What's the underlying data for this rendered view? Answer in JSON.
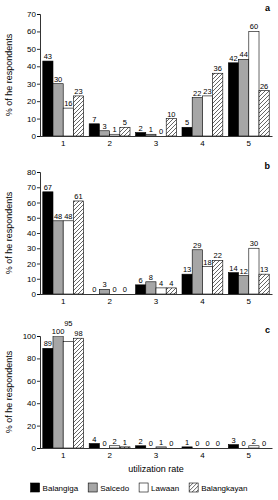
{
  "chart_data": [
    {
      "type": "bar",
      "title": "a",
      "y_label": "% of he respondents",
      "categories": [
        "1",
        "2",
        "3",
        "4",
        "5"
      ],
      "ylim": [
        0,
        70
      ],
      "yticks": [
        0,
        10,
        20,
        30,
        40,
        50,
        60,
        70
      ],
      "data_labels": true,
      "series": [
        {
          "name": "Balangiga",
          "color": "#000000",
          "values": [
            43,
            7,
            2,
            5,
            42
          ]
        },
        {
          "name": "Salcedo",
          "color": "#a6a6a6",
          "values": [
            30,
            3,
            1,
            22,
            44
          ]
        },
        {
          "name": "Lawaan",
          "color": "#ffffff",
          "values": [
            16,
            1,
            0,
            23,
            60
          ]
        },
        {
          "name": "Balangkayan",
          "color": "#555555",
          "values": [
            23,
            5,
            10,
            36,
            26
          ]
        }
      ]
    },
    {
      "type": "bar",
      "title": "b",
      "y_label": "% of he respondents",
      "categories": [
        "1",
        "2",
        "3",
        "4",
        "5"
      ],
      "ylim": [
        0,
        80
      ],
      "yticks": [
        0,
        10,
        20,
        30,
        40,
        50,
        60,
        70,
        80
      ],
      "data_labels": true,
      "series": [
        {
          "name": "Balangiga",
          "color": "#000000",
          "values": [
            67,
            0,
            6,
            13,
            14
          ]
        },
        {
          "name": "Salcedo",
          "color": "#a6a6a6",
          "values": [
            48,
            3,
            8,
            29,
            12
          ]
        },
        {
          "name": "Lawaan",
          "color": "#ffffff",
          "values": [
            48,
            0,
            4,
            18,
            30
          ]
        },
        {
          "name": "Balangkayan",
          "color": "#555555",
          "values": [
            61,
            0,
            4,
            22,
            13
          ]
        }
      ]
    },
    {
      "type": "bar",
      "title": "c",
      "y_label": "% of he respondents",
      "x_label": "utilization rate",
      "categories": [
        "1",
        "2",
        "3",
        "4",
        "5"
      ],
      "ylim": [
        0,
        100
      ],
      "yticks": [
        0,
        20,
        40,
        60,
        80,
        100
      ],
      "data_labels": true,
      "legend": "bottom",
      "series": [
        {
          "name": "Balangiga",
          "color": "#000000",
          "values": [
            89,
            4,
            2,
            1,
            3
          ]
        },
        {
          "name": "Salcedo",
          "color": "#a6a6a6",
          "values": [
            100,
            0,
            0,
            0,
            0
          ]
        },
        {
          "name": "Lawaan",
          "color": "#ffffff",
          "values": [
            95,
            2,
            1,
            0,
            2
          ]
        },
        {
          "name": "Balangkayan",
          "color": "#555555",
          "values": [
            98,
            1,
            0,
            0,
            0
          ]
        }
      ]
    }
  ]
}
